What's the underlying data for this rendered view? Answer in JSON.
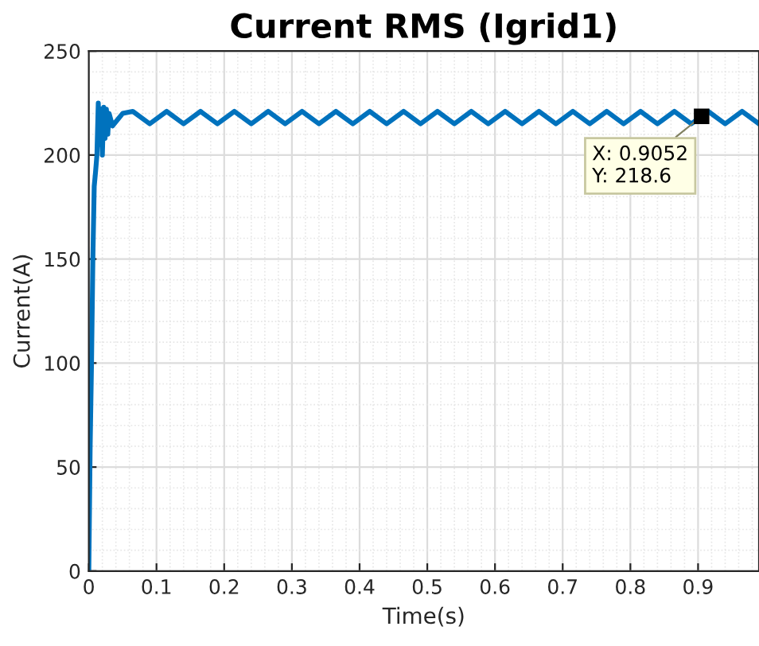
{
  "chart_data": {
    "type": "line",
    "title": "Current RMS (Igrid1)",
    "xlabel": "Time(s)",
    "ylabel": "Current(A)",
    "x": [
      0,
      0.002,
      0.004,
      0.006,
      0.008,
      0.01,
      0.012,
      0.014,
      0.016,
      0.018,
      0.02,
      0.022,
      0.024,
      0.026,
      0.028,
      0.03,
      0.035,
      0.04,
      0.05,
      0.065,
      0.09,
      0.115,
      0.14,
      0.165,
      0.19,
      0.215,
      0.24,
      0.265,
      0.29,
      0.315,
      0.34,
      0.365,
      0.39,
      0.415,
      0.44,
      0.465,
      0.49,
      0.515,
      0.54,
      0.565,
      0.59,
      0.615,
      0.64,
      0.665,
      0.69,
      0.715,
      0.74,
      0.765,
      0.79,
      0.815,
      0.84,
      0.865,
      0.89,
      0.915,
      0.94,
      0.965,
      0.99
    ],
    "series": [
      {
        "color": "#0072bd",
        "values": [
          0,
          60,
          100,
          150,
          185,
          192,
          200,
          225,
          205,
          222,
          200,
          223,
          208,
          222,
          210,
          220,
          214,
          216,
          220,
          221,
          215,
          221,
          215,
          221,
          215,
          221,
          215,
          221,
          215,
          221,
          215,
          221,
          215,
          221,
          215,
          221,
          215,
          221,
          215,
          221,
          215,
          221,
          215,
          221,
          215,
          221,
          215,
          221,
          215,
          221,
          215,
          221,
          215,
          221,
          215,
          221,
          215
        ]
      }
    ],
    "xlim": [
      0,
      0.99
    ],
    "ylim": [
      0,
      250
    ],
    "xticks": [
      0,
      0.1,
      0.2,
      0.3,
      0.4,
      0.5,
      0.6,
      0.7,
      0.8,
      0.9
    ],
    "yticks": [
      0,
      50,
      100,
      150,
      200,
      250
    ],
    "grid": true,
    "marker": "none",
    "line_style": "solid",
    "annotations": [
      {
        "text": "X: 0.9052\nY: 218.6",
        "x": 0.9052,
        "y": 218.6
      }
    ]
  }
}
